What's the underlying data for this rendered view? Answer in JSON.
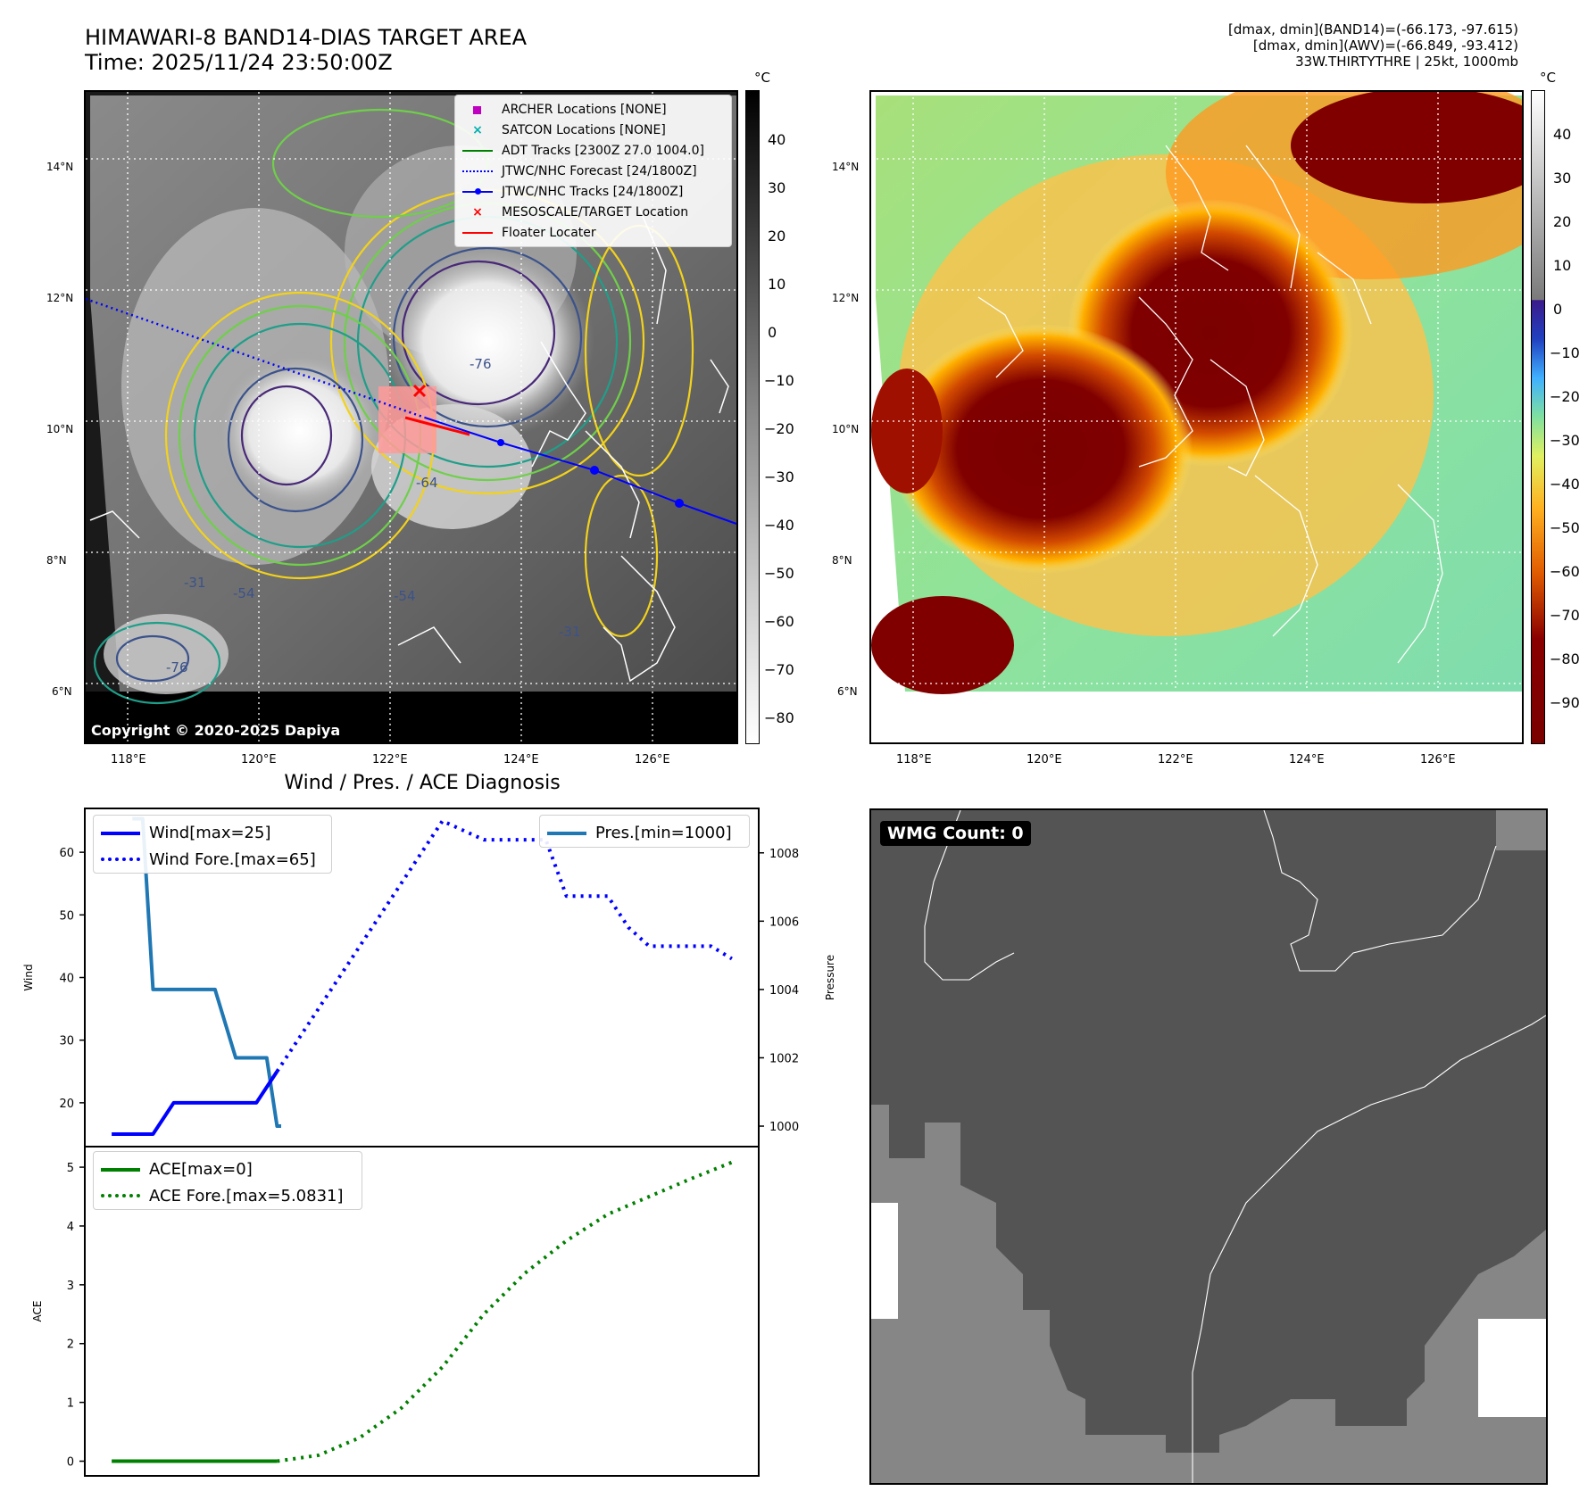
{
  "header": {
    "title_line1": "HIMAWARI-8 BAND14-DIAS TARGET AREA",
    "title_line2": "Time: 2025/11/24 23:50:00Z",
    "info_line1": "[dmax, dmin](BAND14)=(-66.173, -97.615)",
    "info_line2": "[dmax, dmin](AWV)=(-66.849, -93.412)",
    "info_line3": "33W.THIRTYTHRE | 25kt, 1000mb"
  },
  "map": {
    "lat_labels": [
      "14°N",
      "12°N",
      "10°N",
      "8°N",
      "6°N"
    ],
    "lon_labels": [
      "118°E",
      "120°E",
      "122°E",
      "124°E",
      "126°E"
    ],
    "copyright": "Copyright © 2020-2025 Dapiya",
    "legend": [
      {
        "label": "ARCHER Locations [NONE]",
        "color": "#c000c0",
        "marker": "square"
      },
      {
        "label": "SATCON Locations [NONE]",
        "color": "#00b0b0",
        "marker": "x"
      },
      {
        "label": "ADT Tracks [2300Z 27.0 1004.0]",
        "color": "#008000",
        "marker": "line"
      },
      {
        "label": "JTWC/NHC Forecast [24/1800Z]",
        "color": "#0000ff",
        "marker": "dotted"
      },
      {
        "label": "JTWC/NHC Tracks [24/1800Z]",
        "color": "#0000ff",
        "marker": "line-dot"
      },
      {
        "label": "MESOSCALE/TARGET Location",
        "color": "#ff0000",
        "marker": "x"
      },
      {
        "label": "Floater Locater",
        "color": "#ff0000",
        "marker": "line"
      }
    ],
    "contour_labels": [
      "-76",
      "-64",
      "-54",
      "-54",
      "-31",
      "-76",
      "-31"
    ],
    "track_points": [
      [
        123.65,
        9.82
      ],
      [
        125.05,
        9.4
      ],
      [
        126.35,
        8.9
      ]
    ]
  },
  "colorbar_gray": {
    "unit": "°C",
    "ticks": [
      "40",
      "30",
      "20",
      "10",
      "0",
      "−10",
      "−20",
      "−30",
      "−40",
      "−50",
      "−60",
      "−70",
      "−80"
    ]
  },
  "colorbar_color": {
    "unit": "°C",
    "ticks": [
      "40",
      "30",
      "20",
      "10",
      "0",
      "−10",
      "−20",
      "−30",
      "−40",
      "−50",
      "−60",
      "−70",
      "−80",
      "−90"
    ]
  },
  "wmg": {
    "badge": "WMG Count: 0"
  },
  "chart_data": [
    {
      "type": "line",
      "title": "Wind / Pres. / ACE Diagnosis",
      "ylabel": "Wind",
      "y2label": "Pressure",
      "ylim": [
        13,
        67
      ],
      "y2lim": [
        999.4,
        1009.3
      ],
      "yticks": [
        "60",
        "50",
        "40",
        "30",
        "20"
      ],
      "y2ticks": [
        "1008",
        "1006",
        "1004",
        "1002",
        "1000"
      ],
      "x": [
        0,
        1,
        2,
        3,
        4,
        5,
        6,
        7,
        8,
        9,
        10,
        11,
        12,
        13,
        14,
        15,
        16,
        17,
        18,
        19,
        20,
        21,
        22,
        23,
        24,
        25,
        26,
        27,
        28,
        29,
        30
      ],
      "series": [
        {
          "name": "Wind[max=25]",
          "color": "#0000ff",
          "style": "solid",
          "x": [
            0,
            1,
            2,
            3,
            4,
            5,
            6,
            7,
            8
          ],
          "values": [
            15,
            15,
            15,
            20,
            20,
            20,
            20,
            20,
            25
          ]
        },
        {
          "name": "Wind Fore.[max=65]",
          "color": "#0000ff",
          "style": "dotted",
          "x": [
            8,
            10,
            12,
            14,
            16,
            18,
            19,
            21,
            22,
            23,
            24,
            25,
            26,
            27,
            28,
            29,
            30
          ],
          "values": [
            25,
            35,
            45,
            55,
            65,
            62,
            62,
            62,
            53,
            53,
            53,
            48,
            45,
            45,
            45,
            45,
            43
          ]
        },
        {
          "name": "Pres.[min=1000]",
          "color": "#1f77b4",
          "style": "solid",
          "axis": "right",
          "x": [
            1,
            1.5,
            2,
            3,
            4,
            5,
            6,
            6.5,
            7,
            7.5,
            8,
            8.2
          ],
          "values": [
            1009,
            1009,
            1004,
            1004,
            1004,
            1004,
            1002,
            1002,
            1002,
            1002,
            1000,
            1000
          ]
        }
      ]
    },
    {
      "type": "line",
      "ylabel": "ACE",
      "ylim": [
        -0.25,
        5.35
      ],
      "yticks": [
        "5",
        "4",
        "3",
        "2",
        "1",
        "0"
      ],
      "series": [
        {
          "name": "ACE[max=0]",
          "color": "#008000",
          "style": "solid",
          "x": [
            0,
            8
          ],
          "values": [
            0,
            0
          ]
        },
        {
          "name": "ACE Fore.[max=5.0831]",
          "color": "#008000",
          "style": "dotted",
          "x": [
            8,
            10,
            12,
            14,
            16,
            18,
            20,
            22,
            24,
            26,
            28,
            30
          ],
          "values": [
            0,
            0.1,
            0.4,
            0.9,
            1.6,
            2.5,
            3.2,
            3.75,
            4.2,
            4.5,
            4.8,
            5.0831
          ]
        }
      ]
    }
  ]
}
